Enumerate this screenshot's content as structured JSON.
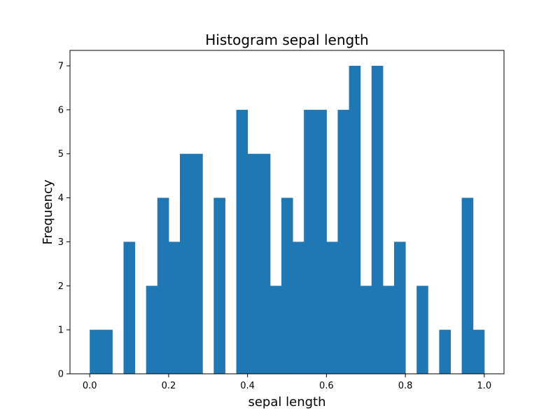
{
  "chart_data": {
    "type": "bar",
    "title": "Histogram sepal length",
    "xlabel": "sepal length",
    "ylabel": "Frequency",
    "xlim": [
      -0.05,
      1.05
    ],
    "ylim": [
      0,
      7.35
    ],
    "xticks": [
      0.0,
      0.2,
      0.4,
      0.6,
      0.8,
      1.0
    ],
    "xtick_labels": [
      "0.0",
      "0.2",
      "0.4",
      "0.6",
      "0.8",
      "1.0"
    ],
    "yticks": [
      0,
      1,
      2,
      3,
      4,
      5,
      6,
      7
    ],
    "ytick_labels": [
      "0",
      "1",
      "2",
      "3",
      "4",
      "5",
      "6",
      "7"
    ],
    "grid": false,
    "bar_color": "#1f77b4",
    "bin_range": [
      0.0,
      1.0
    ],
    "bin_count": 35,
    "values": [
      1,
      1,
      0,
      3,
      0,
      2,
      4,
      3,
      5,
      5,
      0,
      4,
      0,
      6,
      5,
      5,
      2,
      4,
      3,
      6,
      6,
      3,
      6,
      7,
      2,
      7,
      2,
      3,
      0,
      2,
      0,
      1,
      0,
      4,
      1
    ]
  }
}
